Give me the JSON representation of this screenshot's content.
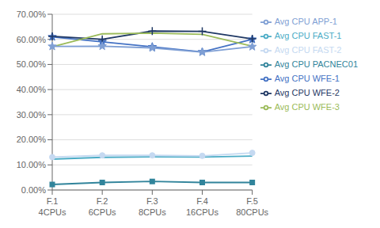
{
  "chart_data": {
    "type": "line",
    "categories": [
      "F.1\n4CPUs",
      "F.2\n6CPUs",
      "F.3\n8CPUs",
      "F.4\n16CPUs",
      "F.5\n80CPUs"
    ],
    "series": [
      {
        "name": "Avg CPU WFE-1",
        "color": "#4472c4",
        "marker": "star",
        "values": [
          0.61,
          0.59,
          0.57,
          0.55,
          0.6
        ]
      },
      {
        "name": "Avg CPU WFE-2",
        "color": "#1f3864",
        "marker": "plus",
        "values": [
          0.612,
          0.6,
          0.633,
          0.632,
          0.602
        ]
      },
      {
        "name": "Avg CPU WFE-3",
        "color": "#9bbb59",
        "marker": "none",
        "values": [
          0.57,
          0.622,
          0.625,
          0.62,
          0.573
        ]
      },
      {
        "name": "Avg CPU APP-1",
        "color": "#7f9fd4",
        "marker": "star",
        "values": [
          0.572,
          0.573,
          0.566,
          0.549,
          0.571
        ]
      },
      {
        "name": "Avg CPU FAST-1",
        "color": "#4bacc6",
        "marker": "none",
        "values": [
          0.123,
          0.13,
          0.132,
          0.131,
          0.135
        ]
      },
      {
        "name": "Avg CPU FAST-2",
        "color": "#c5d9f1",
        "marker": "circle",
        "values": [
          0.131,
          0.138,
          0.138,
          0.136,
          0.148
        ]
      },
      {
        "name": "Avg CPU PACNEC01",
        "color": "#31849b",
        "marker": "square",
        "values": [
          0.022,
          0.03,
          0.034,
          0.03,
          0.03
        ]
      }
    ],
    "ylim": [
      0.0,
      0.7
    ],
    "yticks": [
      {
        "value": 0.0,
        "label": "0.00%"
      },
      {
        "value": 0.1,
        "label": "10.00%"
      },
      {
        "value": 0.2,
        "label": "20.00%"
      },
      {
        "value": 0.3,
        "label": "30.00%"
      },
      {
        "value": 0.4,
        "label": "40.00%"
      },
      {
        "value": 0.5,
        "label": "50.00%"
      },
      {
        "value": 0.6,
        "label": "60.00%"
      },
      {
        "value": 0.7,
        "label": "70.00%"
      }
    ],
    "grid": true,
    "legend": "right"
  }
}
